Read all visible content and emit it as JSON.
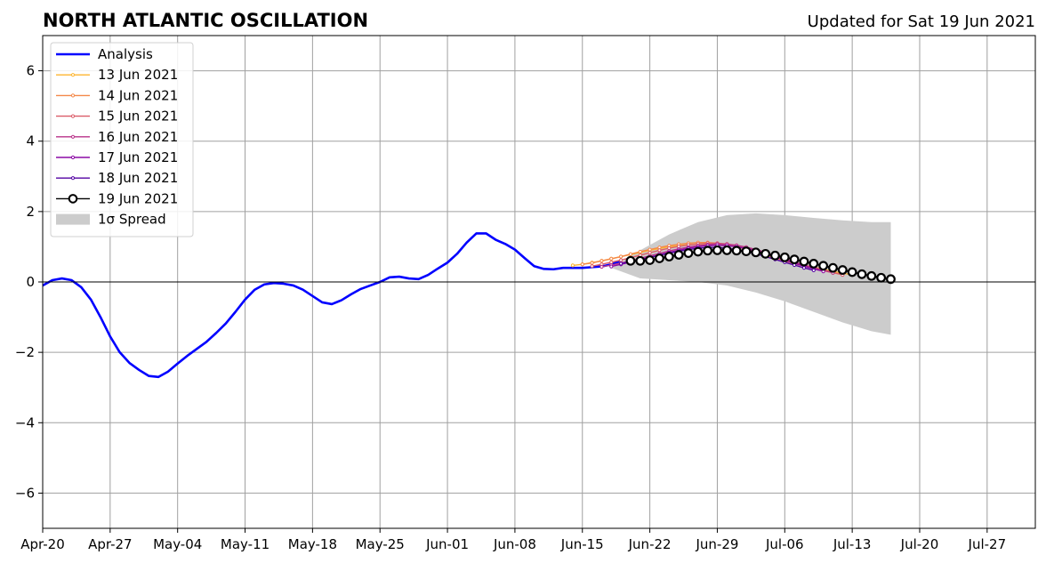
{
  "chart_data": {
    "type": "line",
    "title": "NORTH ATLANTIC OSCILLATION",
    "subtitle": "Updated for Sat 19 Jun 2021",
    "xlabel": "",
    "ylabel": "",
    "grid": true,
    "legend_position": "top-left",
    "xlim": [
      "2021-04-20",
      "2021-08-01"
    ],
    "ylim": [
      -7,
      7
    ],
    "x_ticks": [
      {
        "date": "2021-04-20",
        "label": "Apr-20"
      },
      {
        "date": "2021-04-27",
        "label": "Apr-27"
      },
      {
        "date": "2021-05-04",
        "label": "May-04"
      },
      {
        "date": "2021-05-11",
        "label": "May-11"
      },
      {
        "date": "2021-05-18",
        "label": "May-18"
      },
      {
        "date": "2021-05-25",
        "label": "May-25"
      },
      {
        "date": "2021-06-01",
        "label": "Jun-01"
      },
      {
        "date": "2021-06-08",
        "label": "Jun-08"
      },
      {
        "date": "2021-06-15",
        "label": "Jun-15"
      },
      {
        "date": "2021-06-22",
        "label": "Jun-22"
      },
      {
        "date": "2021-06-29",
        "label": "Jun-29"
      },
      {
        "date": "2021-07-06",
        "label": "Jul-06"
      },
      {
        "date": "2021-07-13",
        "label": "Jul-13"
      },
      {
        "date": "2021-07-20",
        "label": "Jul-20"
      },
      {
        "date": "2021-07-27",
        "label": "Jul-27"
      }
    ],
    "y_ticks": [
      {
        "value": 6,
        "label": "6"
      },
      {
        "value": 4,
        "label": "4"
      },
      {
        "value": 2,
        "label": "2"
      },
      {
        "value": 0,
        "label": "0"
      },
      {
        "value": -2,
        "label": "−2"
      },
      {
        "value": -4,
        "label": "−4"
      },
      {
        "value": -6,
        "label": "−6"
      }
    ],
    "analysis": {
      "name": "Analysis",
      "color": "#0000ff",
      "x": [
        "2021-04-20",
        "2021-04-21",
        "2021-04-22",
        "2021-04-23",
        "2021-04-24",
        "2021-04-25",
        "2021-04-26",
        "2021-04-27",
        "2021-04-28",
        "2021-04-29",
        "2021-04-30",
        "2021-05-01",
        "2021-05-02",
        "2021-05-03",
        "2021-05-04",
        "2021-05-05",
        "2021-05-06",
        "2021-05-07",
        "2021-05-08",
        "2021-05-09",
        "2021-05-10",
        "2021-05-11",
        "2021-05-12",
        "2021-05-13",
        "2021-05-14",
        "2021-05-15",
        "2021-05-16",
        "2021-05-17",
        "2021-05-18",
        "2021-05-19",
        "2021-05-20",
        "2021-05-21",
        "2021-05-22",
        "2021-05-23",
        "2021-05-24",
        "2021-05-25",
        "2021-05-26",
        "2021-05-27",
        "2021-05-28",
        "2021-05-29",
        "2021-05-30",
        "2021-05-31",
        "2021-06-01",
        "2021-06-02",
        "2021-06-03",
        "2021-06-04",
        "2021-06-05",
        "2021-06-06",
        "2021-06-07",
        "2021-06-08",
        "2021-06-09",
        "2021-06-10",
        "2021-06-11",
        "2021-06-12",
        "2021-06-13",
        "2021-06-14",
        "2021-06-15",
        "2021-06-16",
        "2021-06-17",
        "2021-06-18",
        "2021-06-19"
      ],
      "y": [
        -0.1,
        0.05,
        0.1,
        0.05,
        -0.15,
        -0.5,
        -1.0,
        -1.55,
        -2.0,
        -2.3,
        -2.5,
        -2.67,
        -2.7,
        -2.55,
        -2.32,
        -2.1,
        -1.9,
        -1.7,
        -1.45,
        -1.18,
        -0.85,
        -0.5,
        -0.22,
        -0.07,
        -0.03,
        -0.05,
        -0.1,
        -0.22,
        -0.4,
        -0.58,
        -0.63,
        -0.52,
        -0.35,
        -0.2,
        -0.1,
        0.0,
        0.13,
        0.15,
        0.1,
        0.08,
        0.2,
        0.38,
        0.55,
        0.8,
        1.12,
        1.38,
        1.38,
        1.2,
        1.08,
        0.92,
        0.68,
        0.45,
        0.37,
        0.36,
        0.4,
        0.4,
        0.4,
        0.42,
        0.44,
        0.5,
        0.6
      ]
    },
    "forecasts": [
      {
        "name": "13 Jun 2021",
        "color": "#fdb42f",
        "start": "2021-06-14",
        "y": [
          0.47,
          0.5,
          0.55,
          0.6,
          0.66,
          0.72,
          0.78,
          0.84,
          0.9,
          0.95,
          1.0,
          1.03,
          1.06,
          1.08,
          1.09,
          1.08,
          1.05,
          1.0,
          0.94,
          0.86,
          0.78,
          0.7,
          0.62,
          0.55,
          0.48,
          0.42,
          0.36,
          0.3,
          0.25,
          0.2
        ]
      },
      {
        "name": "14 Jun 2021",
        "color": "#f48849",
        "start": "2021-06-15",
        "y": [
          0.5,
          0.54,
          0.6,
          0.66,
          0.72,
          0.79,
          0.86,
          0.92,
          0.98,
          1.03,
          1.07,
          1.1,
          1.12,
          1.12,
          1.1,
          1.06,
          1.0,
          0.93,
          0.85,
          0.77,
          0.68,
          0.6,
          0.52,
          0.45,
          0.38,
          0.32,
          0.26,
          0.21
        ]
      },
      {
        "name": "15 Jun 2021",
        "color": "#db5c68",
        "start": "2021-06-16",
        "y": [
          0.45,
          0.5,
          0.56,
          0.62,
          0.69,
          0.76,
          0.83,
          0.9,
          0.96,
          1.01,
          1.05,
          1.08,
          1.1,
          1.1,
          1.08,
          1.04,
          0.98,
          0.9,
          0.82,
          0.73,
          0.64,
          0.56,
          0.48,
          0.41,
          0.34,
          0.27,
          0.2
        ]
      },
      {
        "name": "16 Jun 2021",
        "color": "#b83289",
        "start": "2021-06-17",
        "y": [
          0.43,
          0.48,
          0.54,
          0.6,
          0.67,
          0.74,
          0.81,
          0.88,
          0.94,
          0.99,
          1.03,
          1.06,
          1.08,
          1.07,
          1.04,
          0.99,
          0.92,
          0.84,
          0.75,
          0.66,
          0.57,
          0.48,
          0.4,
          0.33,
          0.26
        ]
      },
      {
        "name": "17 Jun 2021",
        "color": "#8b0aa5",
        "start": "2021-06-18",
        "y": [
          0.44,
          0.5,
          0.56,
          0.63,
          0.7,
          0.77,
          0.84,
          0.9,
          0.96,
          1.0,
          1.03,
          1.04,
          1.03,
          1.0,
          0.95,
          0.88,
          0.8,
          0.71,
          0.62,
          0.53,
          0.45,
          0.37,
          0.3
        ]
      },
      {
        "name": "18 Jun 2021",
        "color": "#5302a3",
        "start": "2021-06-19",
        "y": [
          0.52,
          0.58,
          0.64,
          0.7,
          0.76,
          0.82,
          0.87,
          0.92,
          0.96,
          0.98,
          0.98,
          0.96,
          0.92,
          0.87,
          0.8,
          0.72,
          0.64,
          0.56,
          0.48,
          0.4,
          0.33
        ]
      },
      {
        "name": "19 Jun 2021",
        "color": "#000000",
        "marker": "open-circle",
        "start": "2021-06-20",
        "y": [
          0.6,
          0.6,
          0.62,
          0.67,
          0.72,
          0.77,
          0.82,
          0.86,
          0.89,
          0.9,
          0.9,
          0.89,
          0.87,
          0.84,
          0.8,
          0.75,
          0.7,
          0.64,
          0.58,
          0.52,
          0.46,
          0.4,
          0.34,
          0.28,
          0.22,
          0.17,
          0.12,
          0.08
        ]
      }
    ],
    "spread": {
      "name": "1σ Spread",
      "color": "#cccccc",
      "x": [
        "2021-06-18",
        "2021-06-21",
        "2021-06-24",
        "2021-06-27",
        "2021-06-30",
        "2021-07-03",
        "2021-07-06",
        "2021-07-09",
        "2021-07-12",
        "2021-07-15",
        "2021-07-17"
      ],
      "upper": [
        0.4,
        0.9,
        1.35,
        1.7,
        1.9,
        1.95,
        1.9,
        1.82,
        1.75,
        1.7,
        1.7
      ],
      "lower": [
        0.4,
        0.1,
        0.05,
        0.0,
        -0.1,
        -0.3,
        -0.55,
        -0.85,
        -1.15,
        -1.4,
        -1.5
      ]
    }
  }
}
